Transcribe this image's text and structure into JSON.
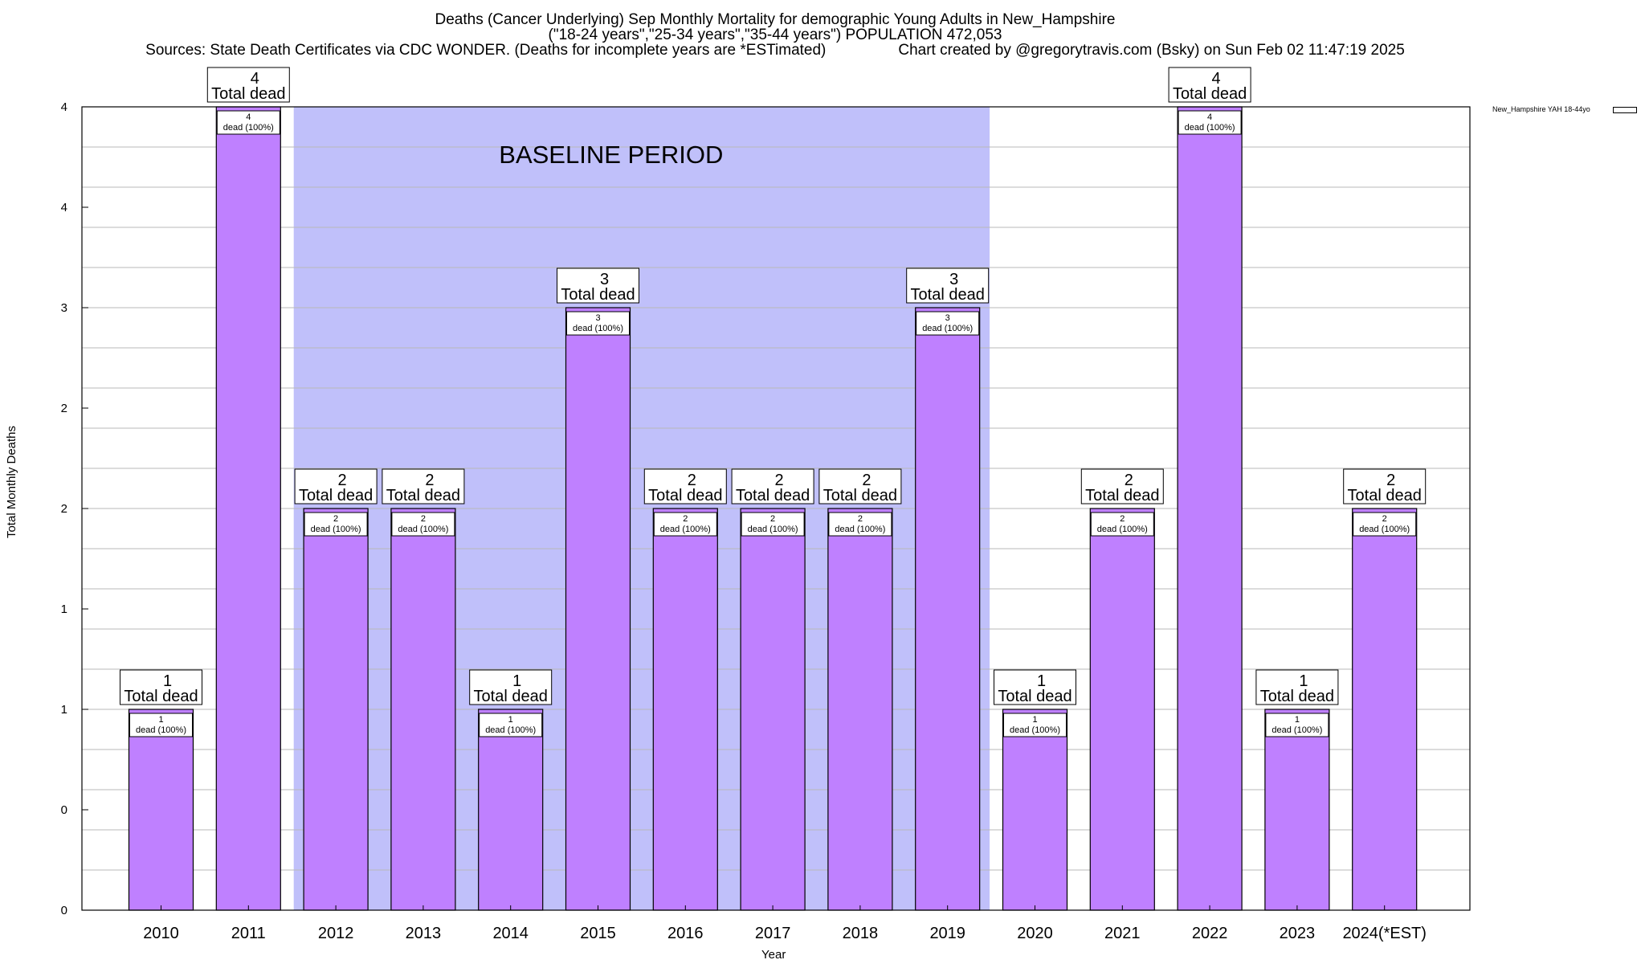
{
  "header": {
    "title_line1": "Deaths (Cancer Underlying) Sep Monthly Mortality for demographic Young Adults in New_Hampshire",
    "title_line2": "(\"18-24 years\",\"25-34 years\",\"35-44 years\") POPULATION 472,053",
    "sources": "Sources: State Death Certificates via CDC WONDER. (Deaths for incomplete years are *ESTimated)",
    "credit": "Chart created by @gregorytravis.com (Bsky) on Sun Feb 02 11:47:19 2025"
  },
  "chart_data": {
    "type": "bar",
    "xlabel": "Year",
    "ylabel": "Total Monthly Deaths",
    "categories": [
      "2010",
      "2011",
      "2012",
      "2013",
      "2014",
      "2015",
      "2016",
      "2017",
      "2018",
      "2019",
      "2020",
      "2021",
      "2022",
      "2023",
      "2024(*EST)"
    ],
    "series": [
      {
        "name": "New_Hampshire YAH 18-44yo",
        "values": [
          1,
          4,
          2,
          2,
          1,
          3,
          2,
          2,
          2,
          3,
          1,
          2,
          4,
          1,
          2
        ],
        "color": "#bf80ff"
      }
    ],
    "ylim": [
      0,
      4
    ],
    "y_tick_labels": [
      "0",
      "0",
      "1",
      "1",
      "2",
      "2",
      "3",
      "4",
      "4"
    ],
    "grid": true,
    "legend_position": "top-right",
    "total_label_suffix": "Total dead",
    "inner_label_suffix": "dead (100%)",
    "baseline": {
      "label": "BASELINE PERIOD",
      "start": "2012",
      "end": "2019",
      "color": "#c0c0fa"
    }
  }
}
